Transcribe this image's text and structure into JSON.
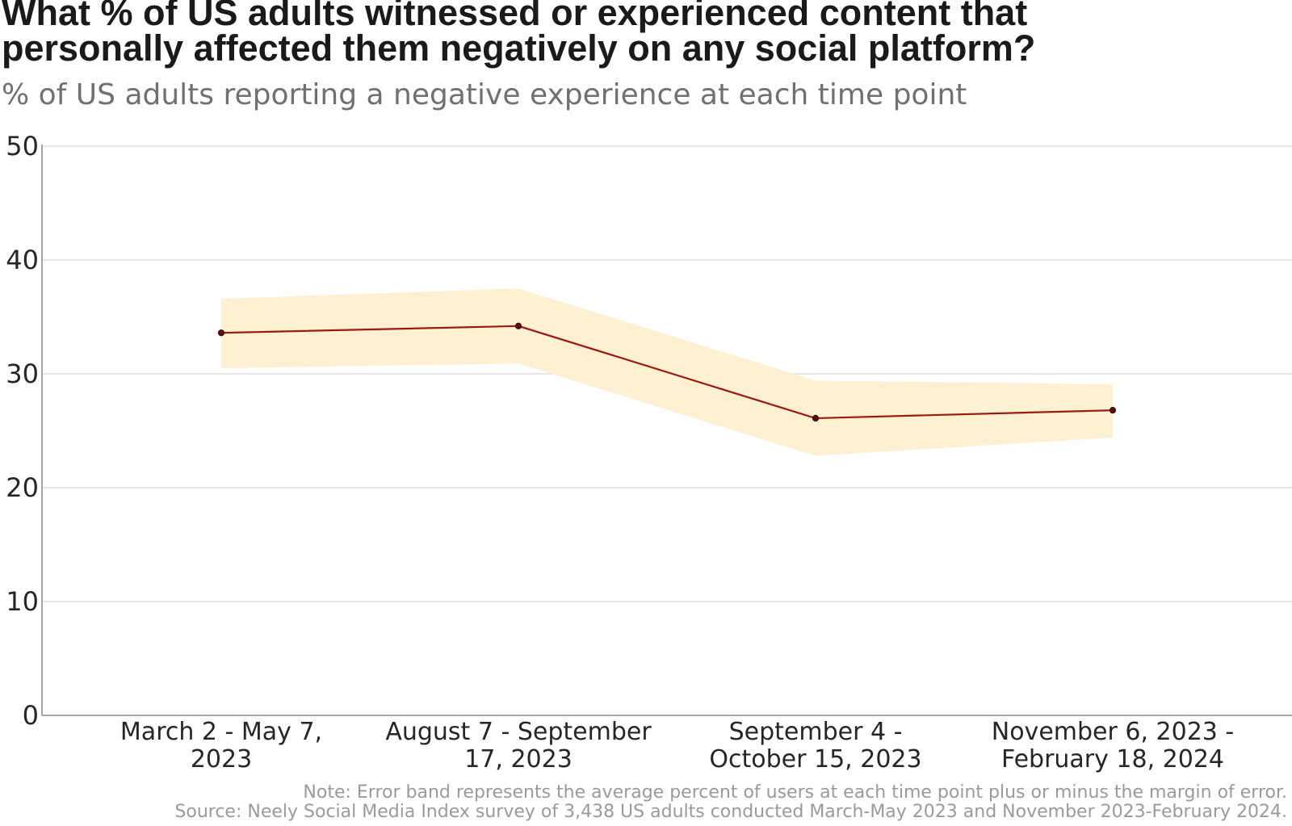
{
  "chart_data": {
    "type": "line",
    "title": "What % of US adults witnessed or experienced content that personally affected them negatively on any social platform?",
    "title_lines": [
      "What % of US adults witnessed or experienced content that",
      "personally affected them negatively on any social platform?"
    ],
    "subtitle": "% of US adults reporting a negative experience at each time point",
    "categories": [
      "March 2 - May 7, 2023",
      "August 7 - September 17, 2023",
      "September 4 - October 15, 2023",
      "November 6, 2023 - February 18, 2024"
    ],
    "category_lines": [
      [
        "March 2 - May 7,",
        "2023"
      ],
      [
        "August 7 - September",
        "17, 2023"
      ],
      [
        "September 4 -",
        "October 15, 2023"
      ],
      [
        "November 6, 2023 -",
        "February 18, 2024"
      ]
    ],
    "series": [
      {
        "values": [
          33.6,
          34.2,
          26.1,
          26.8
        ],
        "band_upper": [
          36.6,
          37.5,
          29.4,
          29.1
        ],
        "band_lower": [
          30.5,
          30.9,
          22.8,
          24.4
        ]
      }
    ],
    "xlabel": "",
    "ylabel": "",
    "ylim": [
      0,
      50
    ],
    "yticks": [
      0,
      10,
      20,
      30,
      40,
      50
    ],
    "grid": true,
    "legend": "none",
    "colors": {
      "line": "#9a1a0e",
      "band": "#fdf0d3",
      "point": "#5a0d0d",
      "grid": "#dddddd",
      "axis": "#8a8a8a"
    },
    "notes": [
      "Note: Error band represents the average percent of users at each time point plus or minus the margin of error.",
      "Source: Neely Social Media Index survey of 3,438 US adults conducted March-May 2023 and November 2023-February 2024."
    ]
  }
}
